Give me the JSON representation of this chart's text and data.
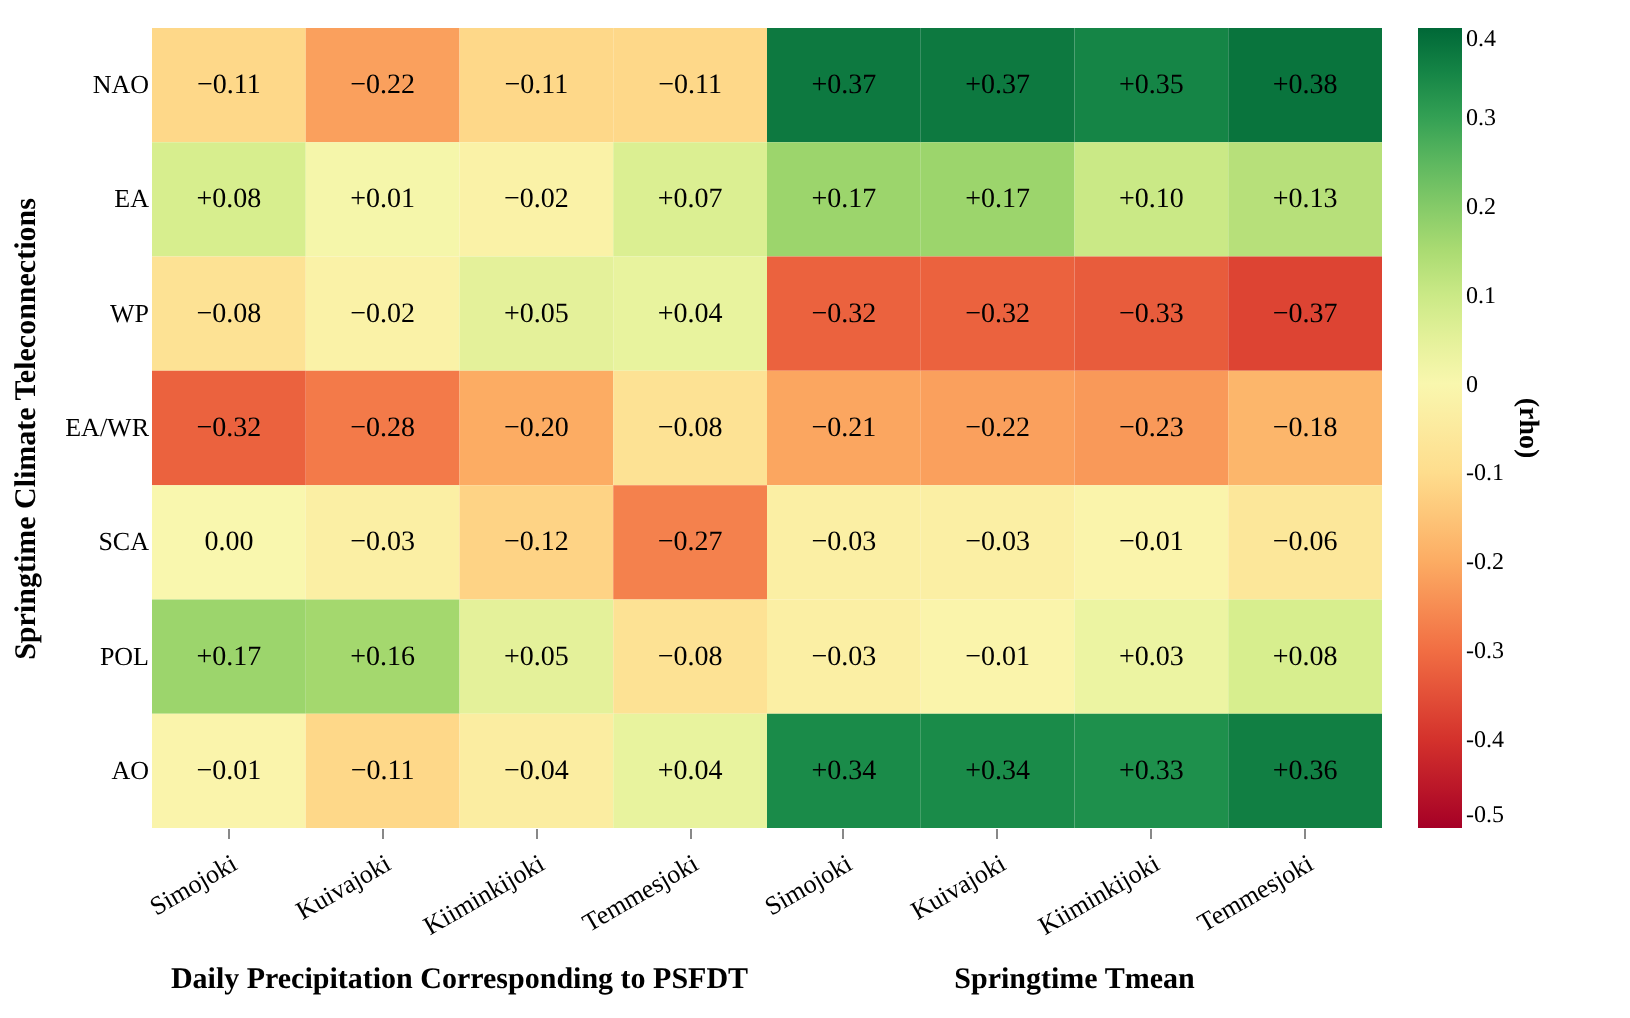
{
  "chart_data": {
    "type": "heatmap",
    "ylabel": "Springtime Climate Teleconnections",
    "clabel": "(rho)",
    "categories": [
      "Simojoki",
      "Kuivajoki",
      "Kiiminkijoki",
      "Temmesjoki",
      "Simojoki",
      "Kuivajoki",
      "Kiiminkijoki",
      "Temmesjoki"
    ],
    "y_categories": [
      "NAO",
      "EA",
      "WP",
      "EA/WR",
      "SCA",
      "POL",
      "AO"
    ],
    "cells": [
      [
        -0.11,
        -0.22,
        -0.11,
        -0.11,
        0.37,
        0.37,
        0.35,
        0.38
      ],
      [
        0.08,
        0.01,
        -0.02,
        0.07,
        0.17,
        0.17,
        0.1,
        0.13
      ],
      [
        -0.08,
        -0.02,
        0.05,
        0.04,
        -0.32,
        -0.32,
        -0.33,
        -0.37
      ],
      [
        -0.32,
        -0.28,
        -0.2,
        -0.08,
        -0.21,
        -0.22,
        -0.23,
        -0.18
      ],
      [
        0.0,
        -0.03,
        -0.12,
        -0.27,
        -0.03,
        -0.03,
        -0.01,
        -0.06
      ],
      [
        0.17,
        0.16,
        0.05,
        -0.08,
        -0.03,
        -0.01,
        0.03,
        0.08
      ],
      [
        -0.01,
        -0.11,
        -0.04,
        0.04,
        0.34,
        0.34,
        0.33,
        0.36
      ]
    ],
    "cell_labels": [
      [
        "−0.11",
        "−0.22",
        "−0.11",
        "−0.11",
        "+0.37",
        "+0.37",
        "+0.35",
        "+0.38"
      ],
      [
        "+0.08",
        "+0.01",
        "−0.02",
        "+0.07",
        "+0.17",
        "+0.17",
        "+0.10",
        "+0.13"
      ],
      [
        "−0.08",
        "−0.02",
        "+0.05",
        "+0.04",
        "−0.32",
        "−0.32",
        "−0.33",
        "−0.37"
      ],
      [
        "−0.32",
        "−0.28",
        "−0.20",
        "−0.08",
        "−0.21",
        "−0.22",
        "−0.23",
        "−0.18"
      ],
      [
        "0.00",
        "−0.03",
        "−0.12",
        "−0.27",
        "−0.03",
        "−0.03",
        "−0.01",
        "−0.06"
      ],
      [
        "+0.17",
        "+0.16",
        "+0.05",
        "−0.08",
        "−0.03",
        "−0.01",
        "+0.03",
        "+0.08"
      ],
      [
        "−0.01",
        "−0.11",
        "−0.04",
        "+0.04",
        "+0.34",
        "+0.34",
        "+0.33",
        "+0.36"
      ]
    ],
    "clim": [
      -0.5,
      0.4
    ],
    "cticks": [
      0.4,
      0.3,
      0.2,
      0.1,
      0,
      {
        "value": -0.1,
        "label": "-0.1"
      },
      {
        "value": -0.2,
        "label": "-0.2"
      },
      {
        "value": -0.3,
        "label": "-0.3"
      },
      {
        "value": -0.4,
        "label": "-0.4"
      },
      {
        "value": -0.5,
        "label": "-0.5"
      }
    ],
    "annotations": [
      "Daily Precipitation Corresponding to PSFDT",
      "Springtime Tmean"
    ]
  }
}
